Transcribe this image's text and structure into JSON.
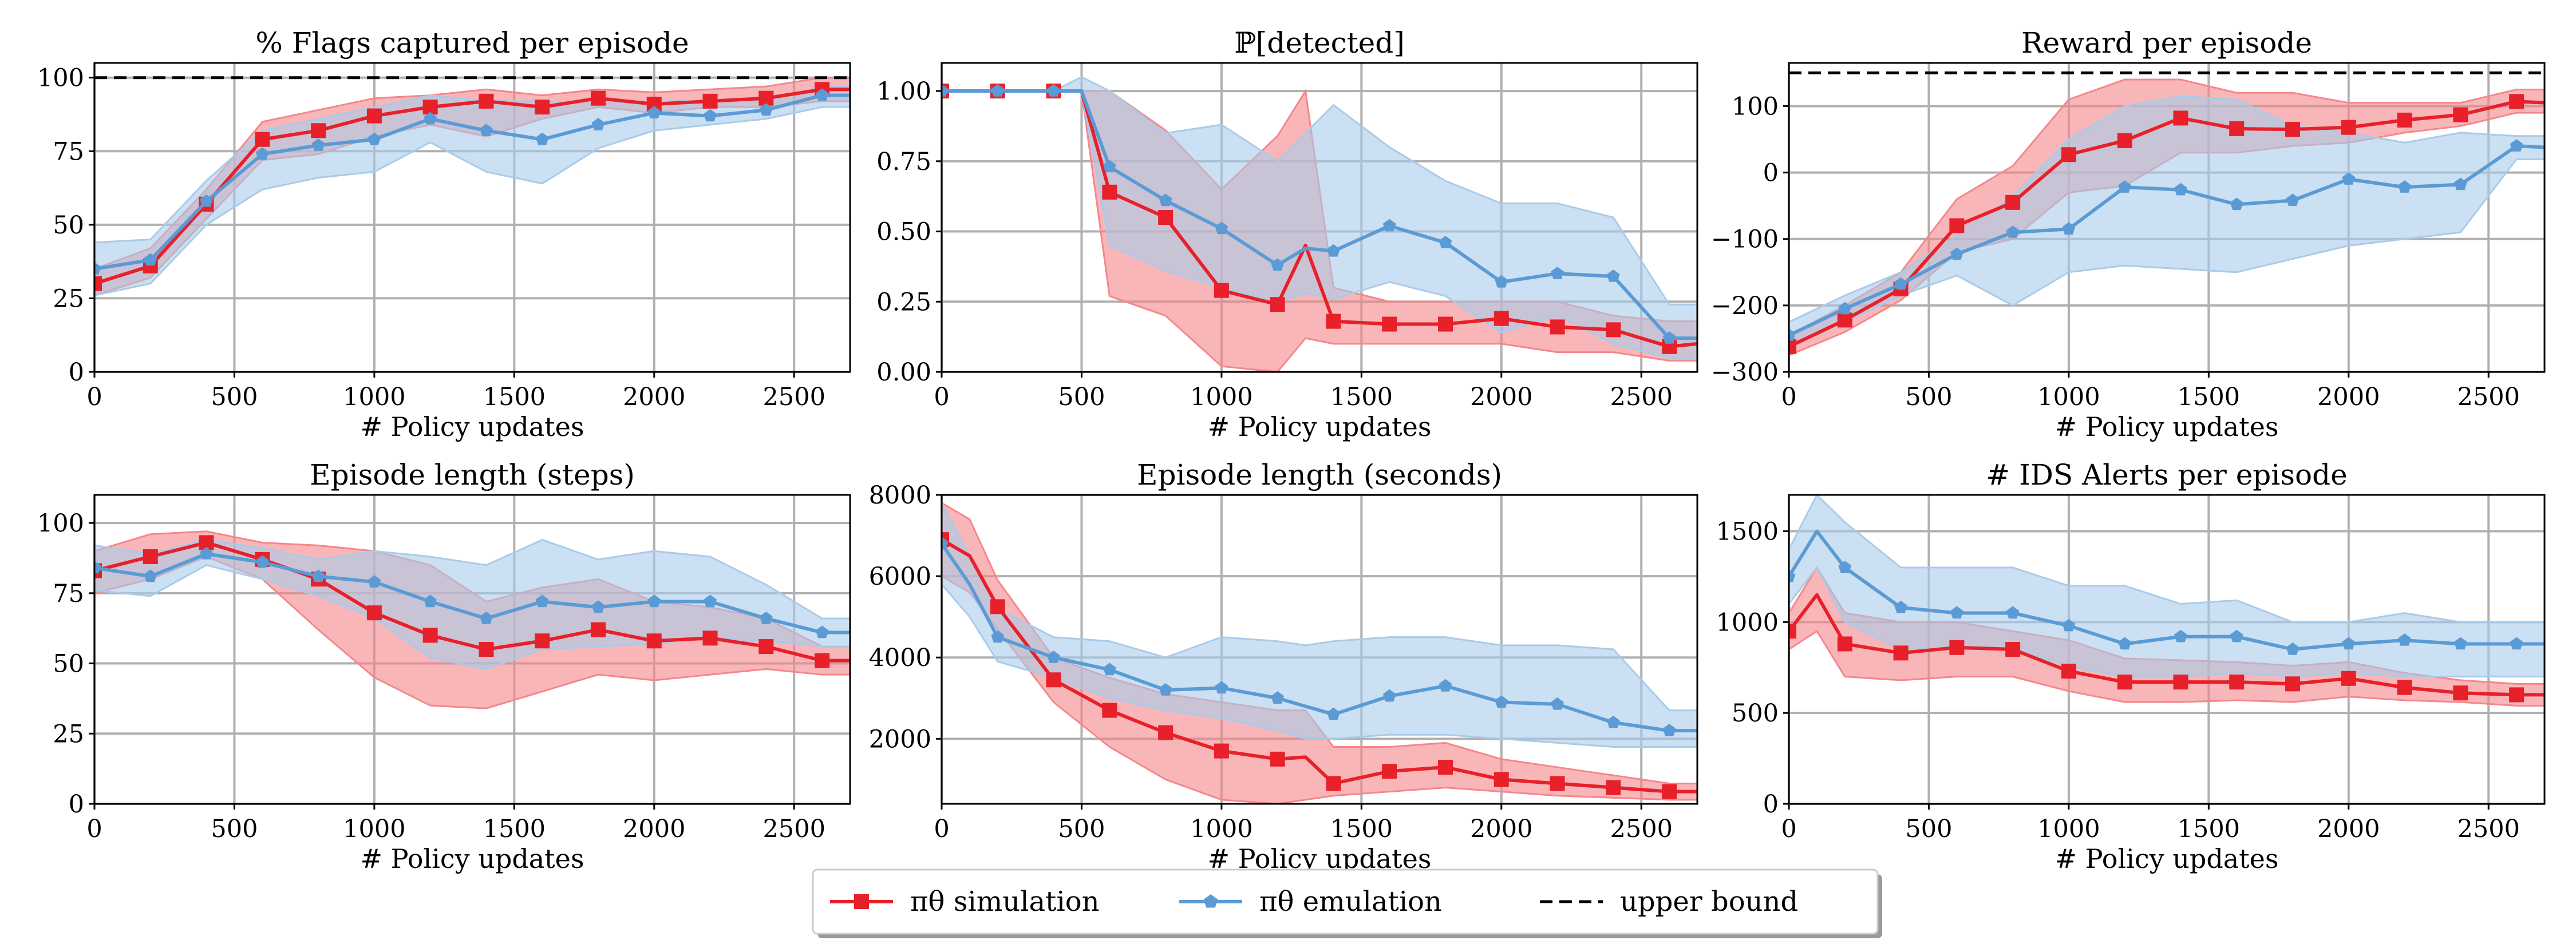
{
  "legend": {
    "position": "bottom-center",
    "entries": [
      {
        "label": "πθ simulation",
        "color": "#e8202a",
        "marker": "square"
      },
      {
        "label": "πθ emulation",
        "color": "#5b9bd5",
        "marker": "pentagon"
      },
      {
        "label": "upper bound",
        "color": "#000000",
        "style": "dashed"
      }
    ]
  },
  "colors": {
    "simulation": "#e8202a",
    "simulation_band": "#f5868b",
    "emulation": "#5b9bd5",
    "emulation_band": "#a9cbe9",
    "grid": "#b0b0b0"
  },
  "chart_data": [
    {
      "type": "line",
      "title": "% Flags captured per episode",
      "xlabel": "# Policy updates",
      "xlim": [
        0,
        2700
      ],
      "ylim": [
        0,
        105
      ],
      "xticks": [
        "0",
        "500",
        "1000",
        "1500",
        "2000",
        "2500"
      ],
      "yticks": [
        "0",
        "25",
        "50",
        "75",
        "100"
      ],
      "grid": true,
      "upper_bound": 100,
      "x": [
        0,
        200,
        400,
        600,
        800,
        1000,
        1200,
        1400,
        1600,
        1800,
        2000,
        2200,
        2400,
        2600,
        2700
      ],
      "series": [
        {
          "key": "simulation",
          "mean": [
            30,
            36,
            57,
            79,
            82,
            87,
            90,
            92,
            90,
            93,
            91,
            92,
            93,
            96,
            96
          ],
          "lower": [
            26,
            32,
            52,
            72,
            74,
            80,
            84,
            80,
            86,
            90,
            88,
            90,
            90,
            92,
            92
          ],
          "upper": [
            35,
            42,
            62,
            85,
            89,
            93,
            94,
            96,
            94,
            96,
            95,
            96,
            97,
            100,
            100
          ]
        },
        {
          "key": "emulation",
          "mean": [
            35,
            38,
            58,
            74,
            77,
            79,
            86,
            82,
            79,
            84,
            88,
            87,
            89,
            94,
            94
          ],
          "lower": [
            26,
            30,
            50,
            62,
            66,
            68,
            78,
            68,
            64,
            76,
            82,
            84,
            86,
            90,
            90
          ],
          "upper": [
            44,
            45,
            65,
            82,
            86,
            90,
            94,
            92,
            92,
            91,
            92,
            92,
            92,
            97,
            97
          ]
        }
      ]
    },
    {
      "type": "line",
      "title": "ℙ[detected]",
      "xlabel": "# Policy updates",
      "xlim": [
        0,
        2700
      ],
      "ylim": [
        0,
        1.1
      ],
      "xticks": [
        "0",
        "500",
        "1000",
        "1500",
        "2000",
        "2500"
      ],
      "yticks": [
        "0.00",
        "0.25",
        "0.50",
        "0.75",
        "1.00"
      ],
      "grid": true,
      "x": [
        0,
        200,
        400,
        500,
        600,
        800,
        1000,
        1200,
        1300,
        1400,
        1600,
        1800,
        2000,
        2200,
        2400,
        2600,
        2700
      ],
      "series": [
        {
          "key": "simulation",
          "mean": [
            1.0,
            1.0,
            1.0,
            1.0,
            0.64,
            0.55,
            0.29,
            0.24,
            0.45,
            0.18,
            0.17,
            0.17,
            0.19,
            0.16,
            0.15,
            0.09,
            0.1
          ],
          "lower": [
            1.0,
            1.0,
            1.0,
            1.0,
            0.27,
            0.2,
            0.02,
            0.0,
            0.12,
            0.1,
            0.1,
            0.1,
            0.1,
            0.07,
            0.07,
            0.04,
            0.04
          ],
          "upper": [
            1.0,
            1.0,
            1.0,
            1.0,
            1.0,
            0.86,
            0.65,
            0.84,
            1.0,
            0.3,
            0.25,
            0.25,
            0.25,
            0.25,
            0.2,
            0.18,
            0.18
          ]
        },
        {
          "key": "emulation",
          "mean": [
            1.0,
            1.0,
            1.0,
            1.0,
            0.73,
            0.61,
            0.51,
            0.38,
            0.44,
            0.43,
            0.52,
            0.46,
            0.32,
            0.35,
            0.34,
            0.12,
            0.12
          ],
          "lower": [
            1.0,
            1.0,
            1.0,
            1.0,
            0.45,
            0.36,
            0.3,
            0.25,
            0.28,
            0.26,
            0.32,
            0.27,
            0.14,
            0.2,
            0.1,
            0.05,
            0.05
          ],
          "upper": [
            1.0,
            1.0,
            1.0,
            1.05,
            1.0,
            0.85,
            0.88,
            0.75,
            0.85,
            0.95,
            0.8,
            0.68,
            0.6,
            0.6,
            0.55,
            0.24,
            0.24
          ]
        }
      ]
    },
    {
      "type": "line",
      "title": "Reward per episode",
      "xlabel": "# Policy updates",
      "xlim": [
        0,
        2700
      ],
      "ylim": [
        -300,
        165
      ],
      "xticks": [
        "0",
        "500",
        "1000",
        "1500",
        "2000",
        "2500"
      ],
      "yticks": [
        "−300",
        "−200",
        "−100",
        "0",
        "100"
      ],
      "grid": true,
      "upper_bound": 150,
      "x": [
        0,
        200,
        400,
        600,
        800,
        1000,
        1200,
        1400,
        1600,
        1800,
        2000,
        2200,
        2400,
        2600,
        2700
      ],
      "series": [
        {
          "key": "simulation",
          "mean": [
            -262,
            -222,
            -175,
            -80,
            -45,
            27,
            48,
            82,
            66,
            65,
            68,
            79,
            87,
            107,
            105
          ],
          "lower": [
            -275,
            -240,
            -192,
            -120,
            -100,
            -30,
            -20,
            30,
            30,
            40,
            45,
            60,
            70,
            90,
            90
          ],
          "upper": [
            -245,
            -200,
            -150,
            -40,
            10,
            110,
            140,
            140,
            120,
            120,
            105,
            105,
            105,
            125,
            125
          ]
        },
        {
          "key": "emulation",
          "mean": [
            -245,
            -205,
            -168,
            -123,
            -90,
            -85,
            -22,
            -26,
            -48,
            -42,
            -10,
            -22,
            -18,
            40,
            38
          ],
          "lower": [
            -262,
            -225,
            -185,
            -155,
            -200,
            -150,
            -140,
            -145,
            -150,
            -130,
            -110,
            -100,
            -90,
            20,
            20
          ],
          "upper": [
            -225,
            -185,
            -150,
            -95,
            -35,
            50,
            100,
            115,
            110,
            70,
            60,
            45,
            60,
            55,
            55
          ]
        }
      ]
    },
    {
      "type": "line",
      "title": "Episode length (steps)",
      "xlabel": "# Policy updates",
      "xlim": [
        0,
        2700
      ],
      "ylim": [
        0,
        110
      ],
      "xticks": [
        "0",
        "500",
        "1000",
        "1500",
        "2000",
        "2500"
      ],
      "yticks": [
        "0",
        "25",
        "50",
        "75",
        "100"
      ],
      "grid": true,
      "x": [
        0,
        200,
        400,
        600,
        800,
        1000,
        1200,
        1400,
        1600,
        1800,
        2000,
        2200,
        2400,
        2600,
        2700
      ],
      "series": [
        {
          "key": "simulation",
          "mean": [
            83,
            88,
            93,
            87,
            80,
            68,
            60,
            55,
            58,
            62,
            58,
            59,
            56,
            51,
            51
          ],
          "lower": [
            75,
            80,
            88,
            80,
            62,
            45,
            35,
            34,
            40,
            46,
            44,
            46,
            48,
            46,
            46
          ],
          "upper": [
            90,
            96,
            97,
            93,
            92,
            90,
            85,
            72,
            77,
            80,
            72,
            70,
            66,
            56,
            56
          ]
        },
        {
          "key": "emulation",
          "mean": [
            84,
            81,
            89,
            86,
            81,
            79,
            72,
            66,
            72,
            70,
            72,
            72,
            66,
            61,
            61
          ],
          "lower": [
            76,
            74,
            85,
            80,
            74,
            66,
            52,
            48,
            55,
            56,
            57,
            59,
            58,
            56,
            56
          ],
          "upper": [
            92,
            89,
            94,
            91,
            87,
            90,
            88,
            85,
            94,
            87,
            90,
            88,
            78,
            66,
            66
          ]
        }
      ]
    },
    {
      "type": "line",
      "title": "Episode length (seconds)",
      "xlabel": "# Policy updates",
      "xlim": [
        0,
        2700
      ],
      "ylim": [
        400,
        8000
      ],
      "xticks": [
        "0",
        "500",
        "1000",
        "1500",
        "2000",
        "2500"
      ],
      "yticks": [
        "2000",
        "4000",
        "6000",
        "8000"
      ],
      "grid": true,
      "x": [
        0,
        100,
        200,
        400,
        600,
        800,
        1000,
        1200,
        1300,
        1400,
        1600,
        1800,
        2000,
        2200,
        2400,
        2600,
        2700
      ],
      "series": [
        {
          "key": "simulation",
          "mean": [
            6900,
            6500,
            5250,
            3450,
            2700,
            2150,
            1700,
            1500,
            1550,
            900,
            1200,
            1300,
            1000,
            900,
            800,
            700,
            700
          ],
          "lower": [
            6000,
            5600,
            4700,
            2900,
            1800,
            1000,
            500,
            400,
            500,
            600,
            700,
            800,
            700,
            600,
            550,
            500,
            500
          ],
          "upper": [
            7800,
            7400,
            5900,
            4000,
            3500,
            3100,
            2900,
            2700,
            2700,
            1800,
            1800,
            1900,
            1500,
            1300,
            1100,
            900,
            900
          ]
        },
        {
          "key": "emulation",
          "mean": [
            6800,
            5800,
            4500,
            4000,
            3700,
            3200,
            3250,
            3000,
            2800,
            2600,
            3050,
            3300,
            2900,
            2850,
            2400,
            2200,
            2200
          ],
          "lower": [
            5800,
            5000,
            3900,
            3500,
            3000,
            2700,
            2500,
            2200,
            2000,
            2000,
            2100,
            2100,
            2000,
            1900,
            1800,
            1800,
            1800
          ],
          "upper": [
            7800,
            6500,
            5200,
            4500,
            4400,
            4000,
            4500,
            4400,
            4300,
            4400,
            4500,
            4500,
            4300,
            4300,
            4200,
            2700,
            2700
          ]
        }
      ]
    },
    {
      "type": "line",
      "title": "# IDS Alerts per episode",
      "xlabel": "# Policy updates",
      "xlim": [
        0,
        2700
      ],
      "ylim": [
        0,
        1700
      ],
      "xticks": [
        "0",
        "500",
        "1000",
        "1500",
        "2000",
        "2500"
      ],
      "yticks": [
        "0",
        "500",
        "1000",
        "1500"
      ],
      "grid": true,
      "x": [
        0,
        100,
        200,
        400,
        600,
        800,
        1000,
        1200,
        1400,
        1600,
        1800,
        2000,
        2200,
        2400,
        2600,
        2700
      ],
      "series": [
        {
          "key": "simulation",
          "mean": [
            950,
            1150,
            880,
            830,
            860,
            850,
            730,
            670,
            670,
            670,
            660,
            690,
            640,
            610,
            600,
            600
          ],
          "lower": [
            850,
            950,
            700,
            680,
            700,
            700,
            620,
            560,
            560,
            570,
            560,
            590,
            570,
            560,
            540,
            540
          ],
          "upper": [
            1050,
            1300,
            1050,
            1000,
            1000,
            950,
            900,
            800,
            790,
            780,
            760,
            780,
            720,
            680,
            660,
            660
          ]
        },
        {
          "key": "emulation",
          "mean": [
            1250,
            1500,
            1300,
            1080,
            1050,
            1050,
            980,
            880,
            920,
            920,
            850,
            880,
            900,
            880,
            880,
            880
          ],
          "lower": [
            1100,
            1300,
            1000,
            850,
            850,
            850,
            760,
            700,
            700,
            720,
            700,
            720,
            700,
            700,
            700,
            700
          ],
          "upper": [
            1400,
            1700,
            1550,
            1300,
            1300,
            1300,
            1200,
            1200,
            1100,
            1120,
            1000,
            1000,
            1050,
            1000,
            1000,
            1000
          ]
        }
      ]
    }
  ]
}
